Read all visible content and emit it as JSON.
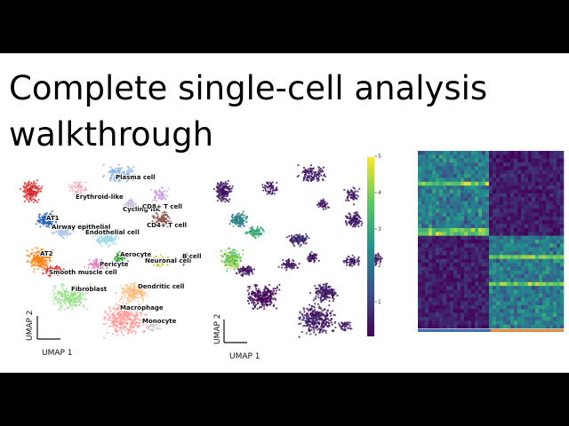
{
  "slide": {
    "title": "Complete single-cell analysis walkthrough",
    "umap_left": {
      "cluster_labels": [
        "Plasma cell",
        "Erythroid-like",
        "Cycling NK",
        "CD8+ T cell",
        "AT1",
        "Airway epithelial",
        "Endothelial cell",
        "CD4+ T cell",
        "AT2",
        "Aerocyte",
        "Pericyte",
        "Neuronal cell",
        "B cell",
        "Smooth muscle cell",
        "Fibroblast",
        "Dendritic cell",
        "Macrophage",
        "Monocyte"
      ],
      "x_label": "UMAP 1",
      "y_label": "UMAP 2"
    },
    "umap_right": {
      "x_label": "UMAP 1",
      "y_label": "UMAP 2",
      "colorbar_ticks": [
        "1",
        "2",
        "3",
        "4",
        "5"
      ]
    }
  }
}
